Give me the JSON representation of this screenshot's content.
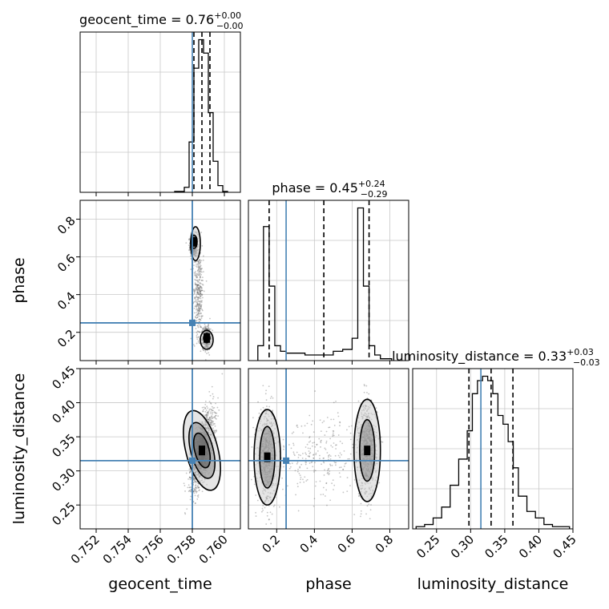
{
  "chart_data": {
    "type": "corner",
    "parameters": [
      "geocent_time",
      "phase",
      "luminosity_distance"
    ],
    "truths": {
      "geocent_time": 0.758,
      "phase": 0.25,
      "luminosity_distance": 0.315
    },
    "colors": {
      "truth": "#4682b4",
      "hist": "#000000",
      "grid": "#c8c8c8",
      "points": "#555555"
    },
    "grid": true,
    "titles": [
      {
        "param": "geocent_time",
        "main": "geocent_time = 0.76",
        "plus": "+0.00",
        "minus": "−0.00"
      },
      {
        "param": "phase",
        "main": "phase = 0.45",
        "plus": "+0.24",
        "minus": "−0.29"
      },
      {
        "param": "luminosity_distance",
        "main": "luminosity_distance = 0.33",
        "plus": "+0.03",
        "minus": "−0.03"
      }
    ],
    "axes": {
      "geocent_time": {
        "range": [
          0.751,
          0.761
        ],
        "ticks": [
          0.752,
          0.754,
          0.756,
          0.758,
          0.76
        ],
        "tick_labels": [
          "0.752",
          "0.754",
          "0.756",
          "0.758",
          "0.760"
        ],
        "quantiles": [
          0.7581,
          0.7586,
          0.7591
        ]
      },
      "phase": {
        "range": [
          0.05,
          0.9
        ],
        "ticks": [
          0.2,
          0.4,
          0.6,
          0.8
        ],
        "tick_labels": [
          "0.2",
          "0.4",
          "0.6",
          "0.8"
        ],
        "quantiles": [
          0.16,
          0.45,
          0.69
        ]
      },
      "luminosity_distance": {
        "range": [
          0.215,
          0.45
        ],
        "ticks": [
          0.25,
          0.3,
          0.35,
          0.4,
          0.45
        ],
        "tick_labels": [
          "0.25",
          "0.30",
          "0.35",
          "0.40",
          "0.45"
        ],
        "quantiles": [
          0.2975,
          0.33,
          0.362
        ]
      }
    },
    "histograms": {
      "geocent_time": {
        "bin_edges": [
          0.7569,
          0.7575,
          0.7578,
          0.7581,
          0.7584,
          0.7587,
          0.759,
          0.7593,
          0.7596,
          0.7599,
          0.7602
        ],
        "counts": [
          1.0,
          6.0,
          60.0,
          148.0,
          182.0,
          166.0,
          95.0,
          37.0,
          8.0,
          1.0
        ]
      },
      "phase": {
        "bin_edges": [
          0.1,
          0.13,
          0.16,
          0.19,
          0.22,
          0.25,
          0.3,
          0.35,
          0.4,
          0.45,
          0.5,
          0.55,
          0.6,
          0.63,
          0.66,
          0.69,
          0.72,
          0.75,
          0.78,
          0.81
        ],
        "counts": [
          8,
          72,
          40,
          8,
          5,
          4,
          4,
          3,
          3,
          3,
          5,
          6,
          12,
          82,
          40,
          8,
          3,
          1,
          1
        ]
      },
      "luminosity_distance": {
        "bin_edges": [
          0.22,
          0.2325,
          0.245,
          0.2575,
          0.27,
          0.2825,
          0.295,
          0.3025,
          0.31,
          0.3175,
          0.325,
          0.3325,
          0.34,
          0.3475,
          0.355,
          0.3625,
          0.37,
          0.3825,
          0.395,
          0.4075,
          0.42,
          0.4325,
          0.445
        ],
        "counts": [
          1,
          2,
          5,
          10,
          20,
          32,
          45,
          62,
          68,
          70,
          68,
          62,
          52,
          48,
          40,
          28,
          15,
          8,
          5,
          2,
          1,
          1
        ]
      }
    },
    "clusters": {
      "geocent_time-phase": [
        {
          "cx": 0.7581,
          "cy": 0.66,
          "sx": 0.00012,
          "sy": 0.03,
          "n": 500
        },
        {
          "cx": 0.7589,
          "cy": 0.17,
          "sx": 0.00012,
          "sy": 0.03,
          "n": 500
        },
        {
          "cx": 0.7584,
          "cy": 0.42,
          "sx": 0.00015,
          "sy": 0.12,
          "n": 350
        }
      ],
      "geocent_time-luminosity_distance": [
        {
          "cx": 0.7586,
          "cy": 0.33,
          "sx": 0.00035,
          "sy": 0.028,
          "rho": 0.65,
          "n": 1500
        }
      ],
      "phase-luminosity_distance": [
        {
          "cx": 0.15,
          "cy": 0.32,
          "sx": 0.025,
          "sy": 0.035,
          "n": 650
        },
        {
          "cx": 0.68,
          "cy": 0.33,
          "sx": 0.025,
          "sy": 0.035,
          "n": 650
        },
        {
          "cx": 0.42,
          "cy": 0.325,
          "sx": 0.12,
          "sy": 0.03,
          "n": 250
        }
      ]
    },
    "contours": {
      "geocent_time-phase": [
        {
          "cx": 0.7582,
          "cy": 0.67,
          "rx": 0.0003,
          "ry": 0.09,
          "rot": 0,
          "level": 1
        },
        {
          "cx": 0.7581,
          "cy": 0.68,
          "rx": 0.0002,
          "ry": 0.035,
          "rot": 0,
          "level": 2
        },
        {
          "cx": 0.7589,
          "cy": 0.16,
          "rx": 0.0004,
          "ry": 0.05,
          "rot": 0,
          "level": 1
        },
        {
          "cx": 0.7589,
          "cy": 0.17,
          "rx": 0.0002,
          "ry": 0.025,
          "rot": 0,
          "level": 2
        }
      ],
      "geocent_time-luminosity_distance": [
        {
          "cx": 0.7586,
          "cy": 0.33,
          "rx": 0.001,
          "ry": 0.06,
          "rot": 0.25,
          "level": 1
        },
        {
          "cx": 0.7586,
          "cy": 0.33,
          "rx": 0.0007,
          "ry": 0.042,
          "rot": 0.25,
          "level": 2
        },
        {
          "cx": 0.7586,
          "cy": 0.33,
          "rx": 0.00045,
          "ry": 0.026,
          "rot": 0.25,
          "level": 3
        }
      ],
      "phase-luminosity_distance": [
        {
          "cx": 0.15,
          "cy": 0.32,
          "rx": 0.07,
          "ry": 0.07,
          "rot": 0,
          "level": 1
        },
        {
          "cx": 0.15,
          "cy": 0.32,
          "rx": 0.04,
          "ry": 0.045,
          "rot": 0,
          "level": 2
        },
        {
          "cx": 0.68,
          "cy": 0.33,
          "rx": 0.07,
          "ry": 0.075,
          "rot": 0,
          "level": 1
        },
        {
          "cx": 0.68,
          "cy": 0.33,
          "rx": 0.04,
          "ry": 0.045,
          "rot": 0,
          "level": 2
        }
      ]
    },
    "bridge": {
      "phase-luminosity_distance": [
        0.22,
        0.6,
        0.32
      ]
    }
  }
}
